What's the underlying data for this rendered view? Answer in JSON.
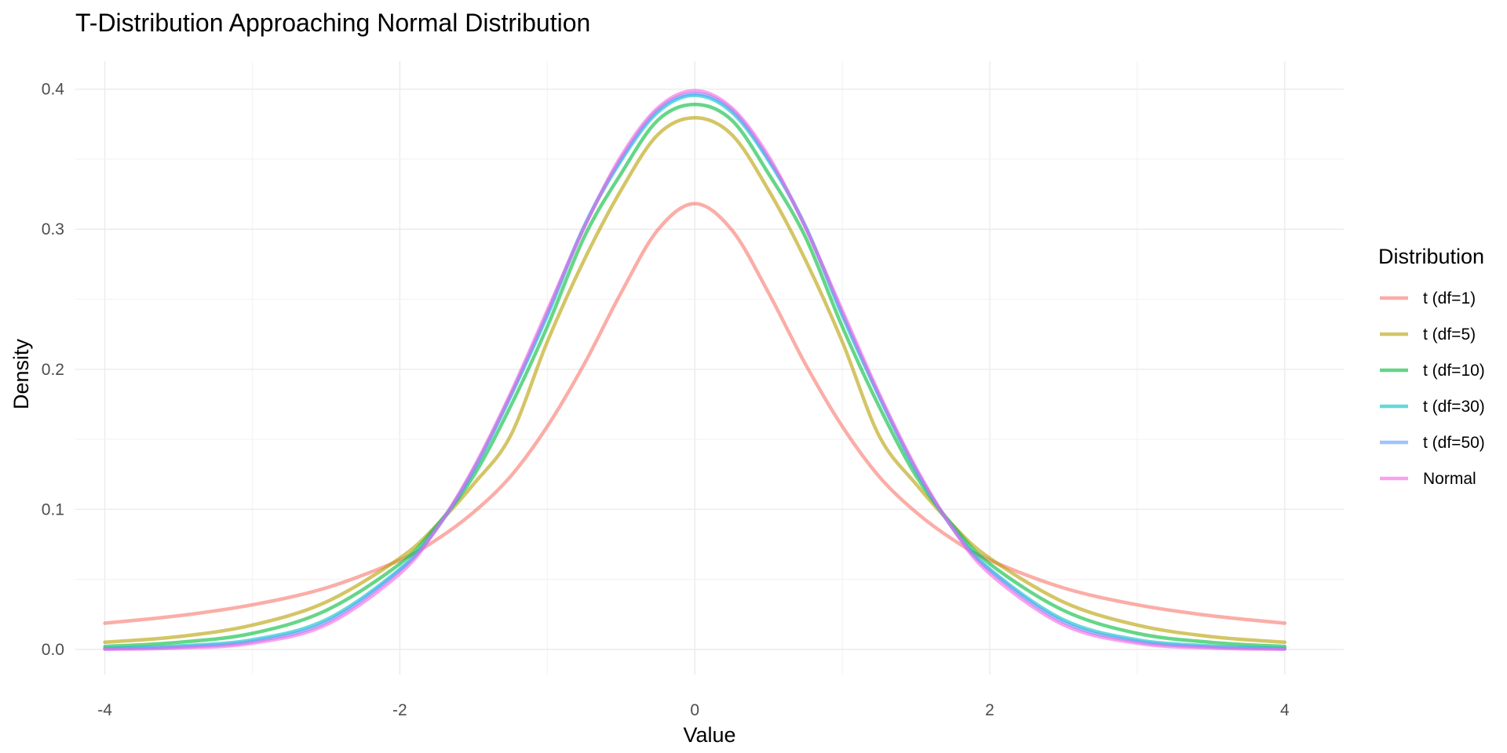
{
  "chart_data": {
    "type": "line",
    "title": "T-Distribution Approaching Normal Distribution",
    "xlabel": "Value",
    "ylabel": "Density",
    "xlim": [
      -4.2,
      4.4
    ],
    "ylim": [
      -0.018,
      0.42
    ],
    "x_ticks": [
      -4,
      -2,
      0,
      2,
      4
    ],
    "x_tick_labels": [
      "-4",
      "-2",
      "0",
      "2",
      "4"
    ],
    "y_ticks": [
      0.0,
      0.1,
      0.2,
      0.3,
      0.4
    ],
    "y_tick_labels": [
      "0.0",
      "0.1",
      "0.2",
      "0.3",
      "0.4"
    ],
    "grid": true,
    "legend": {
      "title": "Distribution",
      "position": "right"
    },
    "x": [
      -4,
      -3.5,
      -3,
      -2.5,
      -2,
      -1.75,
      -1.5,
      -1.25,
      -1,
      -0.75,
      -0.5,
      -0.25,
      0,
      0.25,
      0.5,
      0.75,
      1,
      1.25,
      1.5,
      1.75,
      2,
      2.5,
      3,
      3.5,
      4
    ],
    "series": [
      {
        "name": "t (df=1)",
        "color": "#f8766d",
        "values": [
          0.0187,
          0.024,
          0.0318,
          0.0439,
          0.0637,
          0.0784,
          0.0979,
          0.1234,
          0.1592,
          0.2037,
          0.2546,
          0.2996,
          0.3183,
          0.2996,
          0.2546,
          0.2037,
          0.1592,
          0.1234,
          0.0979,
          0.0784,
          0.0637,
          0.0439,
          0.0318,
          0.024,
          0.0187
        ]
      },
      {
        "name": "t (df=5)",
        "color": "#b79f00",
        "values": [
          0.0051,
          0.0091,
          0.0173,
          0.0338,
          0.0651,
          0.0886,
          0.118,
          0.1524,
          0.2197,
          0.2781,
          0.3279,
          0.3676,
          0.3796,
          0.3676,
          0.3279,
          0.2781,
          0.2197,
          0.1524,
          0.118,
          0.0886,
          0.0651,
          0.0338,
          0.0173,
          0.0091,
          0.0051
        ]
      },
      {
        "name": "t (df=10)",
        "color": "#00ba38",
        "values": [
          0.002,
          0.005,
          0.0114,
          0.0278,
          0.0611,
          0.0884,
          0.1239,
          0.1734,
          0.2304,
          0.2944,
          0.3397,
          0.3779,
          0.3891,
          0.3779,
          0.3397,
          0.2944,
          0.2304,
          0.1734,
          0.1239,
          0.0884,
          0.0611,
          0.0278,
          0.0114,
          0.005,
          0.002
        ]
      },
      {
        "name": "t (df=30)",
        "color": "#00bfc4",
        "values": [
          0.0006,
          0.0024,
          0.0068,
          0.0211,
          0.0573,
          0.0866,
          0.1276,
          0.1805,
          0.2383,
          0.3018,
          0.349,
          0.3836,
          0.3956,
          0.3836,
          0.349,
          0.3018,
          0.2383,
          0.1805,
          0.1276,
          0.0866,
          0.0573,
          0.0211,
          0.0068,
          0.0024,
          0.0006
        ]
      },
      {
        "name": "t (df=50)",
        "color": "#619cff",
        "values": [
          0.0004,
          0.0017,
          0.0056,
          0.0194,
          0.0563,
          0.0861,
          0.1285,
          0.181,
          0.24,
          0.3023,
          0.3503,
          0.3853,
          0.3969,
          0.3853,
          0.3503,
          0.3023,
          0.24,
          0.181,
          0.1285,
          0.0861,
          0.0563,
          0.0194,
          0.0056,
          0.0017,
          0.0004
        ]
      },
      {
        "name": "Normal",
        "color": "#f564e3",
        "values": [
          0.0001,
          0.0009,
          0.0044,
          0.0175,
          0.054,
          0.0863,
          0.1295,
          0.1826,
          0.242,
          0.3011,
          0.3521,
          0.3867,
          0.3989,
          0.3867,
          0.3521,
          0.3011,
          0.242,
          0.1826,
          0.1295,
          0.0863,
          0.054,
          0.0175,
          0.0044,
          0.0009,
          0.0001
        ]
      }
    ]
  }
}
